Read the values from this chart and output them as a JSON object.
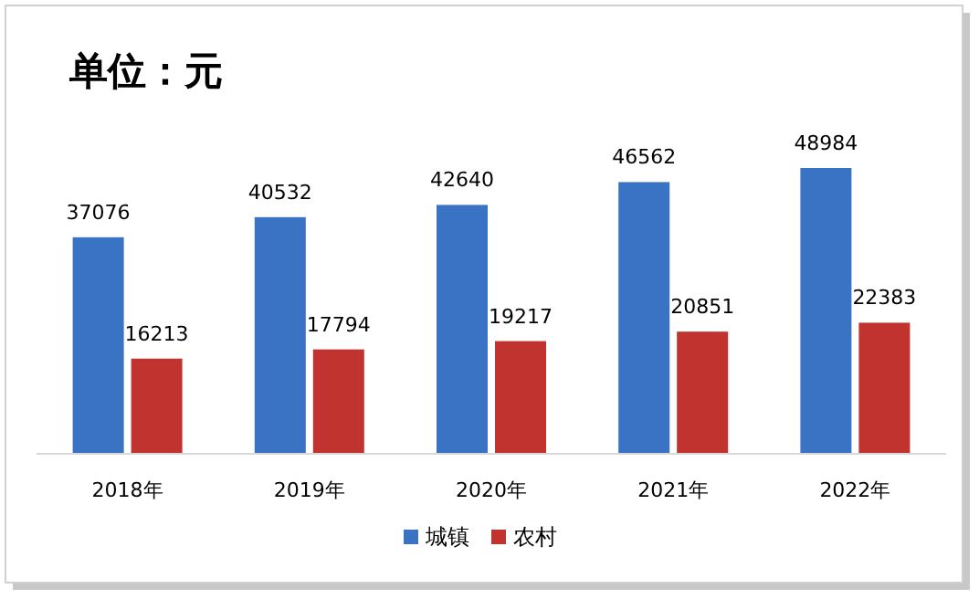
{
  "chart_data": {
    "type": "bar",
    "title": "单位：元",
    "categories": [
      "2018年",
      "2019年",
      "2020年",
      "2021年",
      "2022年"
    ],
    "series": [
      {
        "name": "城镇",
        "color": "#3b73c4",
        "values": [
          37076,
          40532,
          42640,
          46562,
          48984
        ]
      },
      {
        "name": "农村",
        "color": "#c0332e",
        "values": [
          16213,
          17794,
          19217,
          20851,
          22383
        ]
      }
    ],
    "data_labels": true,
    "legend": "bottom"
  }
}
